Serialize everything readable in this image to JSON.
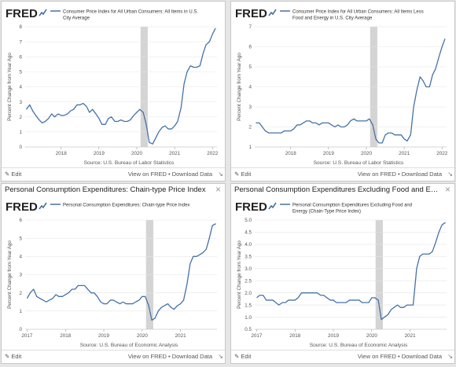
{
  "colors": {
    "line": "#4572a7",
    "recession": "#d4d4d4",
    "grid": "#e5e5e5",
    "axis": "#555555",
    "logo": "#222222",
    "logo_accent": "#4572a7"
  },
  "icons": {
    "edit": "pencil-icon",
    "close": "close-icon",
    "resize": "resize-handle-icon",
    "logo": "fred-logo"
  },
  "panels": [
    {
      "header_title": "",
      "show_close": false,
      "logo_text": "FRED",
      "legend_lines": [
        "Consumer Price Index for All Urban Consumers: All Items in U.S.",
        "City Average"
      ],
      "source": "Source: U.S. Bureau of Labor Statistics",
      "edit_label": "Edit",
      "links_label": "View on FRED • Download Data",
      "chart_data": {
        "type": "line",
        "ylabel": "Percent Change from Year Ago",
        "xlim": [
          2017.05,
          2022.12
        ],
        "ylim": [
          0,
          8
        ],
        "yticks": [
          0,
          1,
          2,
          3,
          4,
          5,
          6,
          7,
          8
        ],
        "xticks": [
          {
            "value": 2018.0,
            "label": "2018"
          },
          {
            "value": 2019.0,
            "label": "2019"
          },
          {
            "value": 2020.0,
            "label": "2020"
          },
          {
            "value": 2021.0,
            "label": "2021"
          },
          {
            "value": 2022.0,
            "label": "2022"
          }
        ],
        "recession": [
          2020.1,
          2020.29
        ],
        "grid": true,
        "x": [
          2017.08,
          2017.17,
          2017.25,
          2017.33,
          2017.42,
          2017.5,
          2017.58,
          2017.67,
          2017.75,
          2017.83,
          2017.92,
          2018.0,
          2018.08,
          2018.17,
          2018.25,
          2018.33,
          2018.42,
          2018.5,
          2018.58,
          2018.67,
          2018.75,
          2018.83,
          2018.92,
          2019.0,
          2019.08,
          2019.17,
          2019.25,
          2019.33,
          2019.42,
          2019.5,
          2019.58,
          2019.67,
          2019.75,
          2019.83,
          2019.92,
          2020.0,
          2020.08,
          2020.17,
          2020.25,
          2020.33,
          2020.42,
          2020.5,
          2020.58,
          2020.67,
          2020.75,
          2020.83,
          2020.92,
          2021.0,
          2021.08,
          2021.17,
          2021.25,
          2021.33,
          2021.42,
          2021.5,
          2021.58,
          2021.67,
          2021.75,
          2021.83,
          2021.92,
          2022.0,
          2022.08
        ],
        "series": [
          {
            "values": [
              2.5,
              2.8,
              2.4,
              2.1,
              1.8,
              1.6,
              1.7,
              1.9,
              2.2,
              2.0,
              2.2,
              2.1,
              2.1,
              2.2,
              2.4,
              2.5,
              2.8,
              2.8,
              2.9,
              2.7,
              2.3,
              2.5,
              2.2,
              1.9,
              1.5,
              1.5,
              1.9,
              2.0,
              1.7,
              1.7,
              1.8,
              1.7,
              1.7,
              1.8,
              2.1,
              2.3,
              2.5,
              2.3,
              1.5,
              0.3,
              0.2,
              0.6,
              1.0,
              1.3,
              1.4,
              1.2,
              1.2,
              1.4,
              1.7,
              2.6,
              4.2,
              5.0,
              5.4,
              5.3,
              5.3,
              5.4,
              6.2,
              6.8,
              7.0,
              7.5,
              7.9
            ]
          }
        ]
      }
    },
    {
      "header_title": "",
      "show_close": false,
      "logo_text": "FRED",
      "legend_lines": [
        "Consumer Price Index for All Urban Consumers: All Items Less",
        "Food and Energy in U.S. City Average"
      ],
      "source": "Source: U.S. Bureau of Labor Statistics",
      "edit_label": "Edit",
      "links_label": "View on FRED • Download Data",
      "chart_data": {
        "type": "line",
        "ylabel": "Percent Change from Year Ago",
        "xlim": [
          2017.05,
          2022.12
        ],
        "ylim": [
          1,
          7
        ],
        "yticks": [
          1,
          2,
          3,
          4,
          5,
          6,
          7
        ],
        "xticks": [
          {
            "value": 2018.0,
            "label": "2018"
          },
          {
            "value": 2019.0,
            "label": "2019"
          },
          {
            "value": 2020.0,
            "label": "2020"
          },
          {
            "value": 2021.0,
            "label": "2021"
          },
          {
            "value": 2022.0,
            "label": "2022"
          }
        ],
        "recession": [
          2020.1,
          2020.29
        ],
        "grid": true,
        "x": [
          2017.08,
          2017.17,
          2017.25,
          2017.33,
          2017.42,
          2017.5,
          2017.58,
          2017.67,
          2017.75,
          2017.83,
          2017.92,
          2018.0,
          2018.08,
          2018.17,
          2018.25,
          2018.33,
          2018.42,
          2018.5,
          2018.58,
          2018.67,
          2018.75,
          2018.83,
          2018.92,
          2019.0,
          2019.08,
          2019.17,
          2019.25,
          2019.33,
          2019.42,
          2019.5,
          2019.58,
          2019.67,
          2019.75,
          2019.83,
          2019.92,
          2020.0,
          2020.08,
          2020.17,
          2020.25,
          2020.33,
          2020.42,
          2020.5,
          2020.58,
          2020.67,
          2020.75,
          2020.83,
          2020.92,
          2021.0,
          2021.08,
          2021.17,
          2021.25,
          2021.33,
          2021.42,
          2021.5,
          2021.58,
          2021.67,
          2021.75,
          2021.83,
          2021.92,
          2022.0,
          2022.08
        ],
        "series": [
          {
            "values": [
              2.2,
              2.2,
              2.0,
              1.8,
              1.7,
              1.7,
              1.7,
              1.7,
              1.7,
              1.8,
              1.8,
              1.8,
              1.9,
              2.1,
              2.1,
              2.2,
              2.3,
              2.3,
              2.2,
              2.2,
              2.1,
              2.2,
              2.2,
              2.2,
              2.1,
              2.0,
              2.1,
              2.0,
              2.0,
              2.1,
              2.3,
              2.4,
              2.3,
              2.3,
              2.3,
              2.3,
              2.4,
              2.1,
              1.4,
              1.2,
              1.2,
              1.6,
              1.7,
              1.7,
              1.6,
              1.6,
              1.6,
              1.4,
              1.3,
              1.6,
              3.0,
              3.8,
              4.5,
              4.3,
              4.0,
              4.0,
              4.6,
              4.9,
              5.5,
              6.0,
              6.4
            ]
          }
        ]
      }
    },
    {
      "header_title": "Personal Consumption Expenditures: Chain-type Price Index",
      "show_close": true,
      "logo_text": "FRED",
      "legend_lines": [
        "Personal Consumption Expenditures: Chain-type Price Index"
      ],
      "source": "Source: U.S. Bureau of Economic Analysis",
      "edit_label": "Edit",
      "links_label": "View on FRED • Download Data",
      "chart_data": {
        "type": "line",
        "ylabel": "Percent Change from Year Ago",
        "xlim": [
          2016.95,
          2021.95
        ],
        "ylim": [
          0,
          6
        ],
        "yticks": [
          0,
          1,
          2,
          3,
          4,
          5,
          6
        ],
        "xticks": [
          {
            "value": 2017.0,
            "label": "2017"
          },
          {
            "value": 2018.0,
            "label": "2018"
          },
          {
            "value": 2019.0,
            "label": "2019"
          },
          {
            "value": 2020.0,
            "label": "2020"
          },
          {
            "value": 2021.0,
            "label": "2021"
          }
        ],
        "recession": [
          2020.1,
          2020.29
        ],
        "grid": true,
        "x": [
          2017.0,
          2017.08,
          2017.17,
          2017.25,
          2017.33,
          2017.42,
          2017.5,
          2017.58,
          2017.67,
          2017.75,
          2017.83,
          2017.92,
          2018.0,
          2018.08,
          2018.17,
          2018.25,
          2018.33,
          2018.42,
          2018.5,
          2018.58,
          2018.67,
          2018.75,
          2018.83,
          2018.92,
          2019.0,
          2019.08,
          2019.17,
          2019.25,
          2019.33,
          2019.42,
          2019.5,
          2019.58,
          2019.67,
          2019.75,
          2019.83,
          2019.92,
          2020.0,
          2020.08,
          2020.17,
          2020.25,
          2020.33,
          2020.42,
          2020.5,
          2020.58,
          2020.67,
          2020.75,
          2020.83,
          2020.92,
          2021.0,
          2021.08,
          2021.17,
          2021.25,
          2021.33,
          2021.42,
          2021.5,
          2021.58,
          2021.67,
          2021.75,
          2021.83,
          2021.92
        ],
        "series": [
          {
            "values": [
              1.7,
              2.0,
              2.2,
              1.8,
              1.7,
              1.6,
              1.5,
              1.6,
              1.7,
              1.9,
              1.8,
              1.8,
              1.9,
              2.0,
              2.2,
              2.2,
              2.4,
              2.4,
              2.4,
              2.2,
              2.0,
              2.0,
              1.8,
              1.5,
              1.4,
              1.4,
              1.6,
              1.6,
              1.5,
              1.4,
              1.5,
              1.4,
              1.4,
              1.4,
              1.5,
              1.6,
              1.8,
              1.8,
              1.3,
              0.5,
              0.6,
              1.0,
              1.2,
              1.3,
              1.4,
              1.2,
              1.1,
              1.3,
              1.4,
              1.6,
              2.5,
              3.6,
              4.0,
              4.0,
              4.1,
              4.2,
              4.4,
              5.0,
              5.7,
              5.8
            ]
          }
        ]
      }
    },
    {
      "header_title": "Personal Consumption Expenditures Excluding Food and Energy (Chain-Type Price Index)",
      "show_close": true,
      "logo_text": "FRED",
      "legend_lines": [
        "Personal Consumption Expenditures Excluding Food and",
        "Energy (Chain-Type Price Index)"
      ],
      "source": "Source: U.S. Bureau of Economic Analysis",
      "edit_label": "Edit",
      "links_label": "View on FRED • Download Data",
      "chart_data": {
        "type": "line",
        "ylabel": "Percent Change from Year Ago",
        "xlim": [
          2016.95,
          2021.95
        ],
        "ylim": [
          0.5,
          5.0
        ],
        "yticks": [
          0.5,
          1.0,
          1.5,
          2.0,
          2.5,
          3.0,
          3.5,
          4.0,
          4.5,
          5.0
        ],
        "xticks": [
          {
            "value": 2017.0,
            "label": "2017"
          },
          {
            "value": 2018.0,
            "label": "2018"
          },
          {
            "value": 2019.0,
            "label": "2019"
          },
          {
            "value": 2020.0,
            "label": "2020"
          },
          {
            "value": 2021.0,
            "label": "2021"
          }
        ],
        "recession": [
          2020.1,
          2020.29
        ],
        "grid": true,
        "x": [
          2017.0,
          2017.08,
          2017.17,
          2017.25,
          2017.33,
          2017.42,
          2017.5,
          2017.58,
          2017.67,
          2017.75,
          2017.83,
          2017.92,
          2018.0,
          2018.08,
          2018.17,
          2018.25,
          2018.33,
          2018.42,
          2018.5,
          2018.58,
          2018.67,
          2018.75,
          2018.83,
          2018.92,
          2019.0,
          2019.08,
          2019.17,
          2019.25,
          2019.33,
          2019.42,
          2019.5,
          2019.58,
          2019.67,
          2019.75,
          2019.83,
          2019.92,
          2020.0,
          2020.08,
          2020.17,
          2020.25,
          2020.33,
          2020.42,
          2020.5,
          2020.58,
          2020.67,
          2020.75,
          2020.83,
          2020.92,
          2021.0,
          2021.08,
          2021.17,
          2021.25,
          2021.33,
          2021.42,
          2021.5,
          2021.58,
          2021.67,
          2021.75,
          2021.83,
          2021.92
        ],
        "series": [
          {
            "values": [
              1.8,
              1.9,
              1.9,
              1.7,
              1.7,
              1.7,
              1.6,
              1.5,
              1.6,
              1.6,
              1.7,
              1.7,
              1.7,
              1.8,
              2.0,
              2.0,
              2.0,
              2.0,
              2.0,
              2.0,
              1.9,
              1.9,
              1.8,
              1.7,
              1.7,
              1.6,
              1.6,
              1.6,
              1.6,
              1.7,
              1.7,
              1.7,
              1.7,
              1.6,
              1.6,
              1.6,
              1.8,
              1.8,
              1.7,
              0.9,
              1.0,
              1.1,
              1.3,
              1.4,
              1.5,
              1.4,
              1.4,
              1.5,
              1.5,
              1.5,
              3.0,
              3.5,
              3.6,
              3.6,
              3.6,
              3.7,
              4.1,
              4.5,
              4.8,
              4.9
            ]
          }
        ]
      }
    }
  ]
}
